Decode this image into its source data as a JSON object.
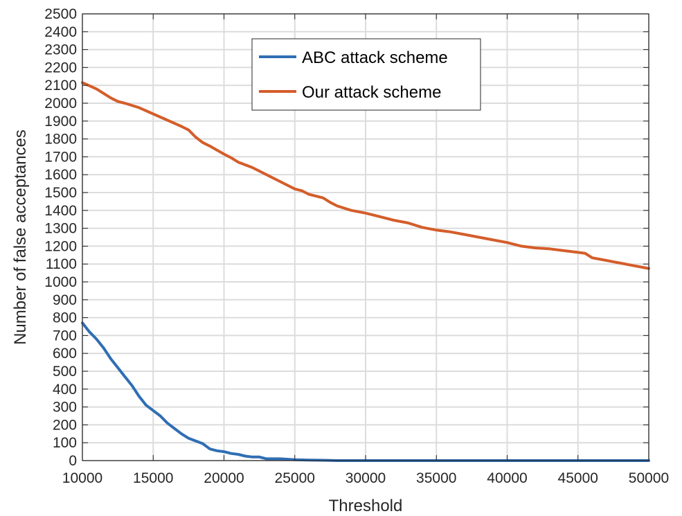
{
  "chart_data": {
    "type": "line",
    "title": "",
    "xlabel": "Threshold",
    "ylabel": "Number of false acceptances",
    "xlim": [
      10000,
      50000
    ],
    "ylim": [
      0,
      2500
    ],
    "xticks": [
      10000,
      15000,
      20000,
      25000,
      30000,
      35000,
      40000,
      45000,
      50000
    ],
    "yticks": [
      0,
      100,
      200,
      300,
      400,
      500,
      600,
      700,
      800,
      900,
      1000,
      1100,
      1200,
      1300,
      1400,
      1500,
      1600,
      1700,
      1800,
      1900,
      2000,
      2100,
      2200,
      2300,
      2400,
      2500
    ],
    "grid": true,
    "legend_position": "top-center",
    "series": [
      {
        "name": "ABC attack scheme",
        "color": "#2f6eb4",
        "x": [
          10000,
          10500,
          11000,
          11500,
          12000,
          12500,
          13000,
          13500,
          14000,
          14500,
          15000,
          15500,
          16000,
          16500,
          17000,
          17500,
          18000,
          18500,
          19000,
          19500,
          20000,
          20500,
          21000,
          21500,
          22000,
          22500,
          23000,
          24000,
          25000,
          26000,
          27000,
          28000,
          30000,
          35000,
          40000,
          45000,
          50000
        ],
        "y": [
          770,
          720,
          680,
          630,
          570,
          520,
          470,
          420,
          360,
          310,
          280,
          250,
          210,
          180,
          150,
          125,
          110,
          95,
          65,
          55,
          50,
          40,
          35,
          25,
          20,
          20,
          10,
          10,
          5,
          3,
          2,
          0,
          0,
          0,
          0,
          0,
          0
        ]
      },
      {
        "name": "Our attack scheme",
        "color": "#d45d2a",
        "x": [
          10000,
          11000,
          12000,
          12500,
          13000,
          14000,
          15000,
          16000,
          17000,
          17500,
          18000,
          18500,
          19000,
          20000,
          20500,
          21000,
          22000,
          23000,
          24000,
          25000,
          25500,
          26000,
          27000,
          27500,
          28000,
          29000,
          30000,
          31000,
          32000,
          33000,
          34000,
          35000,
          36000,
          37000,
          38000,
          39000,
          40000,
          41000,
          42000,
          43000,
          44000,
          45000,
          45500,
          46000,
          47000,
          48000,
          49000,
          50000
        ],
        "y": [
          2115,
          2080,
          2030,
          2010,
          2000,
          1975,
          1940,
          1905,
          1870,
          1850,
          1810,
          1780,
          1760,
          1715,
          1695,
          1670,
          1640,
          1600,
          1560,
          1520,
          1510,
          1490,
          1470,
          1445,
          1425,
          1400,
          1385,
          1365,
          1345,
          1330,
          1305,
          1290,
          1280,
          1265,
          1250,
          1235,
          1220,
          1200,
          1190,
          1185,
          1175,
          1165,
          1160,
          1135,
          1120,
          1105,
          1090,
          1075
        ]
      }
    ]
  }
}
